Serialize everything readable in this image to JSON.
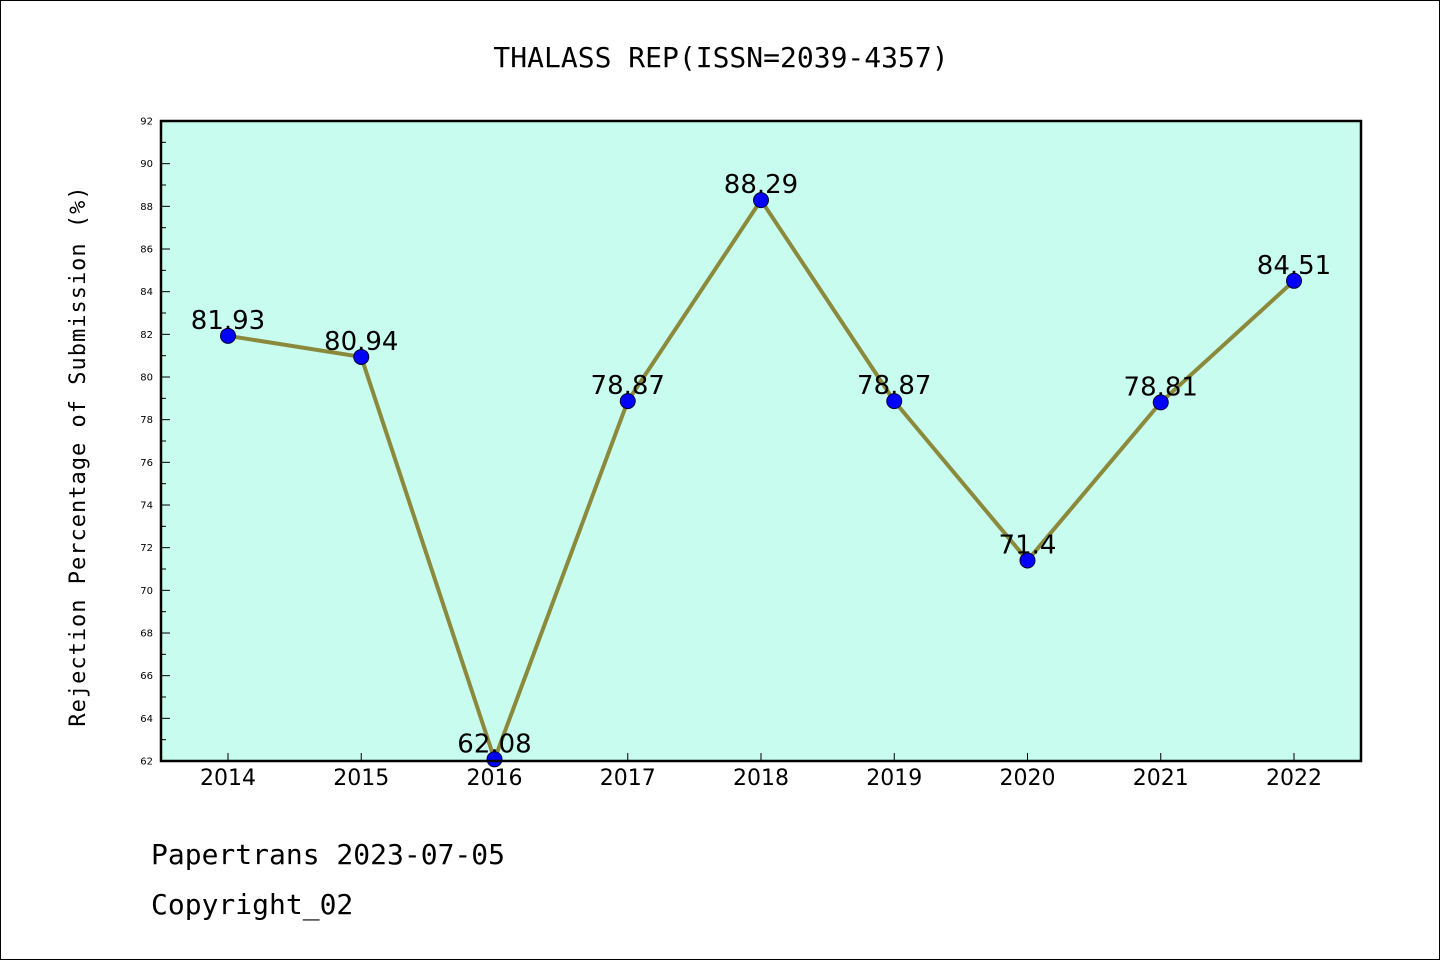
{
  "chart_data": {
    "type": "line",
    "title": "THALASS REP(ISSN=2039-4357)",
    "ylabel": "Rejection Percentage of Submission (%)",
    "xlabel": "",
    "categories": [
      "2014",
      "2015",
      "2016",
      "2017",
      "2018",
      "2019",
      "2020",
      "2021",
      "2022"
    ],
    "values": [
      81.93,
      80.94,
      62.08,
      78.87,
      88.29,
      78.87,
      71.4,
      78.81,
      84.51
    ],
    "data_labels": [
      "81.93",
      "80.94",
      "62.08",
      "78.87",
      "88.29",
      "78.87",
      "71.4",
      "78.81",
      "84.51"
    ],
    "ylim": [
      62,
      92
    ],
    "yticks": [
      "62",
      "64",
      "66",
      "68",
      "70",
      "72",
      "74",
      "76",
      "78",
      "80",
      "82",
      "84",
      "86",
      "88",
      "90",
      "92"
    ],
    "grid": false,
    "colors": {
      "plot_background": "#c8fcee",
      "line": "#8b8a3c",
      "marker": "#0000ff"
    }
  },
  "footer": {
    "line1": "Papertrans 2023-07-05",
    "line2": "Copyright_02"
  }
}
